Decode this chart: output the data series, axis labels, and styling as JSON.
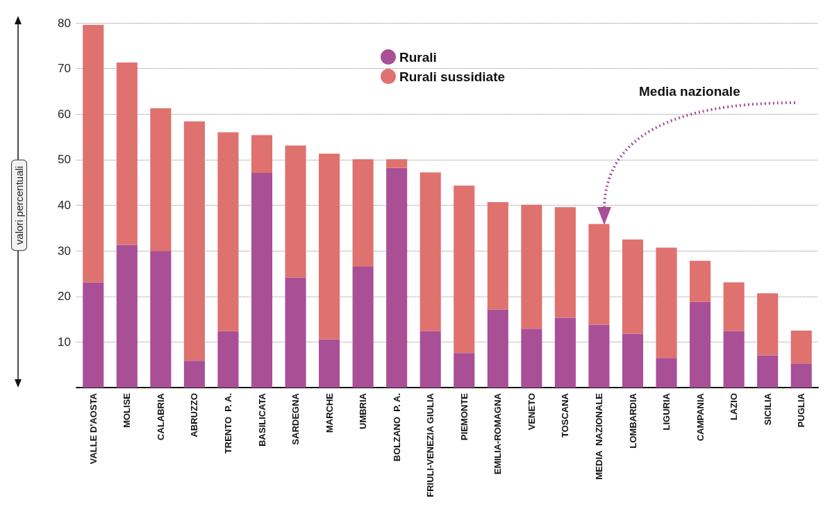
{
  "chart_data": {
    "type": "bar",
    "stacked": true,
    "ylabel": "valori percentuali",
    "categories": [
      "VALLE D'AOSTA",
      "MOLISE",
      "CALABRIA",
      "ABRUZZO",
      "TRENTO  P. A.",
      "BASILICATA",
      "SARDEGNA",
      "MARCHE",
      "UMBRIA",
      "BOLZANO  P. A.",
      "FRIULI-VENEZIA GIULIA",
      "PIEMONTE",
      "EMILIA-ROMAGNA",
      "VENETO",
      "TOSCANA",
      "MEDIA  NAZIONALE",
      "LOMBARDIA",
      "LIGURIA",
      "CAMPANIA",
      "LAZIO",
      "SICILIA",
      "PUGLIA"
    ],
    "series": [
      {
        "name": "Rurali",
        "color": "#a84f96",
        "values": [
          23.1,
          31.3,
          30,
          5.9,
          12.4,
          47.1,
          24.1,
          10.6,
          26.5,
          48.2,
          12.4,
          7.6,
          17.1,
          12.9,
          15.3,
          13.8,
          11.8,
          6.5,
          18.8,
          12.4,
          7.1,
          5.3
        ]
      },
      {
        "name": "Rurali sussidiate",
        "color": "#df716f",
        "values": [
          56.5,
          40,
          31.3,
          52.5,
          43.6,
          8.3,
          29,
          40.7,
          23.6,
          1.9,
          34.8,
          36.7,
          23.6,
          27.2,
          24.3,
          22.1,
          20.7,
          24.2,
          9,
          10.7,
          13.6,
          7.2
        ]
      }
    ],
    "ylim": [
      0,
      80
    ],
    "yticks": [
      10,
      20,
      30,
      40,
      50,
      60,
      70,
      80
    ],
    "grid": "y",
    "legend": "top",
    "annotations": [
      "Media nazionale"
    ]
  }
}
